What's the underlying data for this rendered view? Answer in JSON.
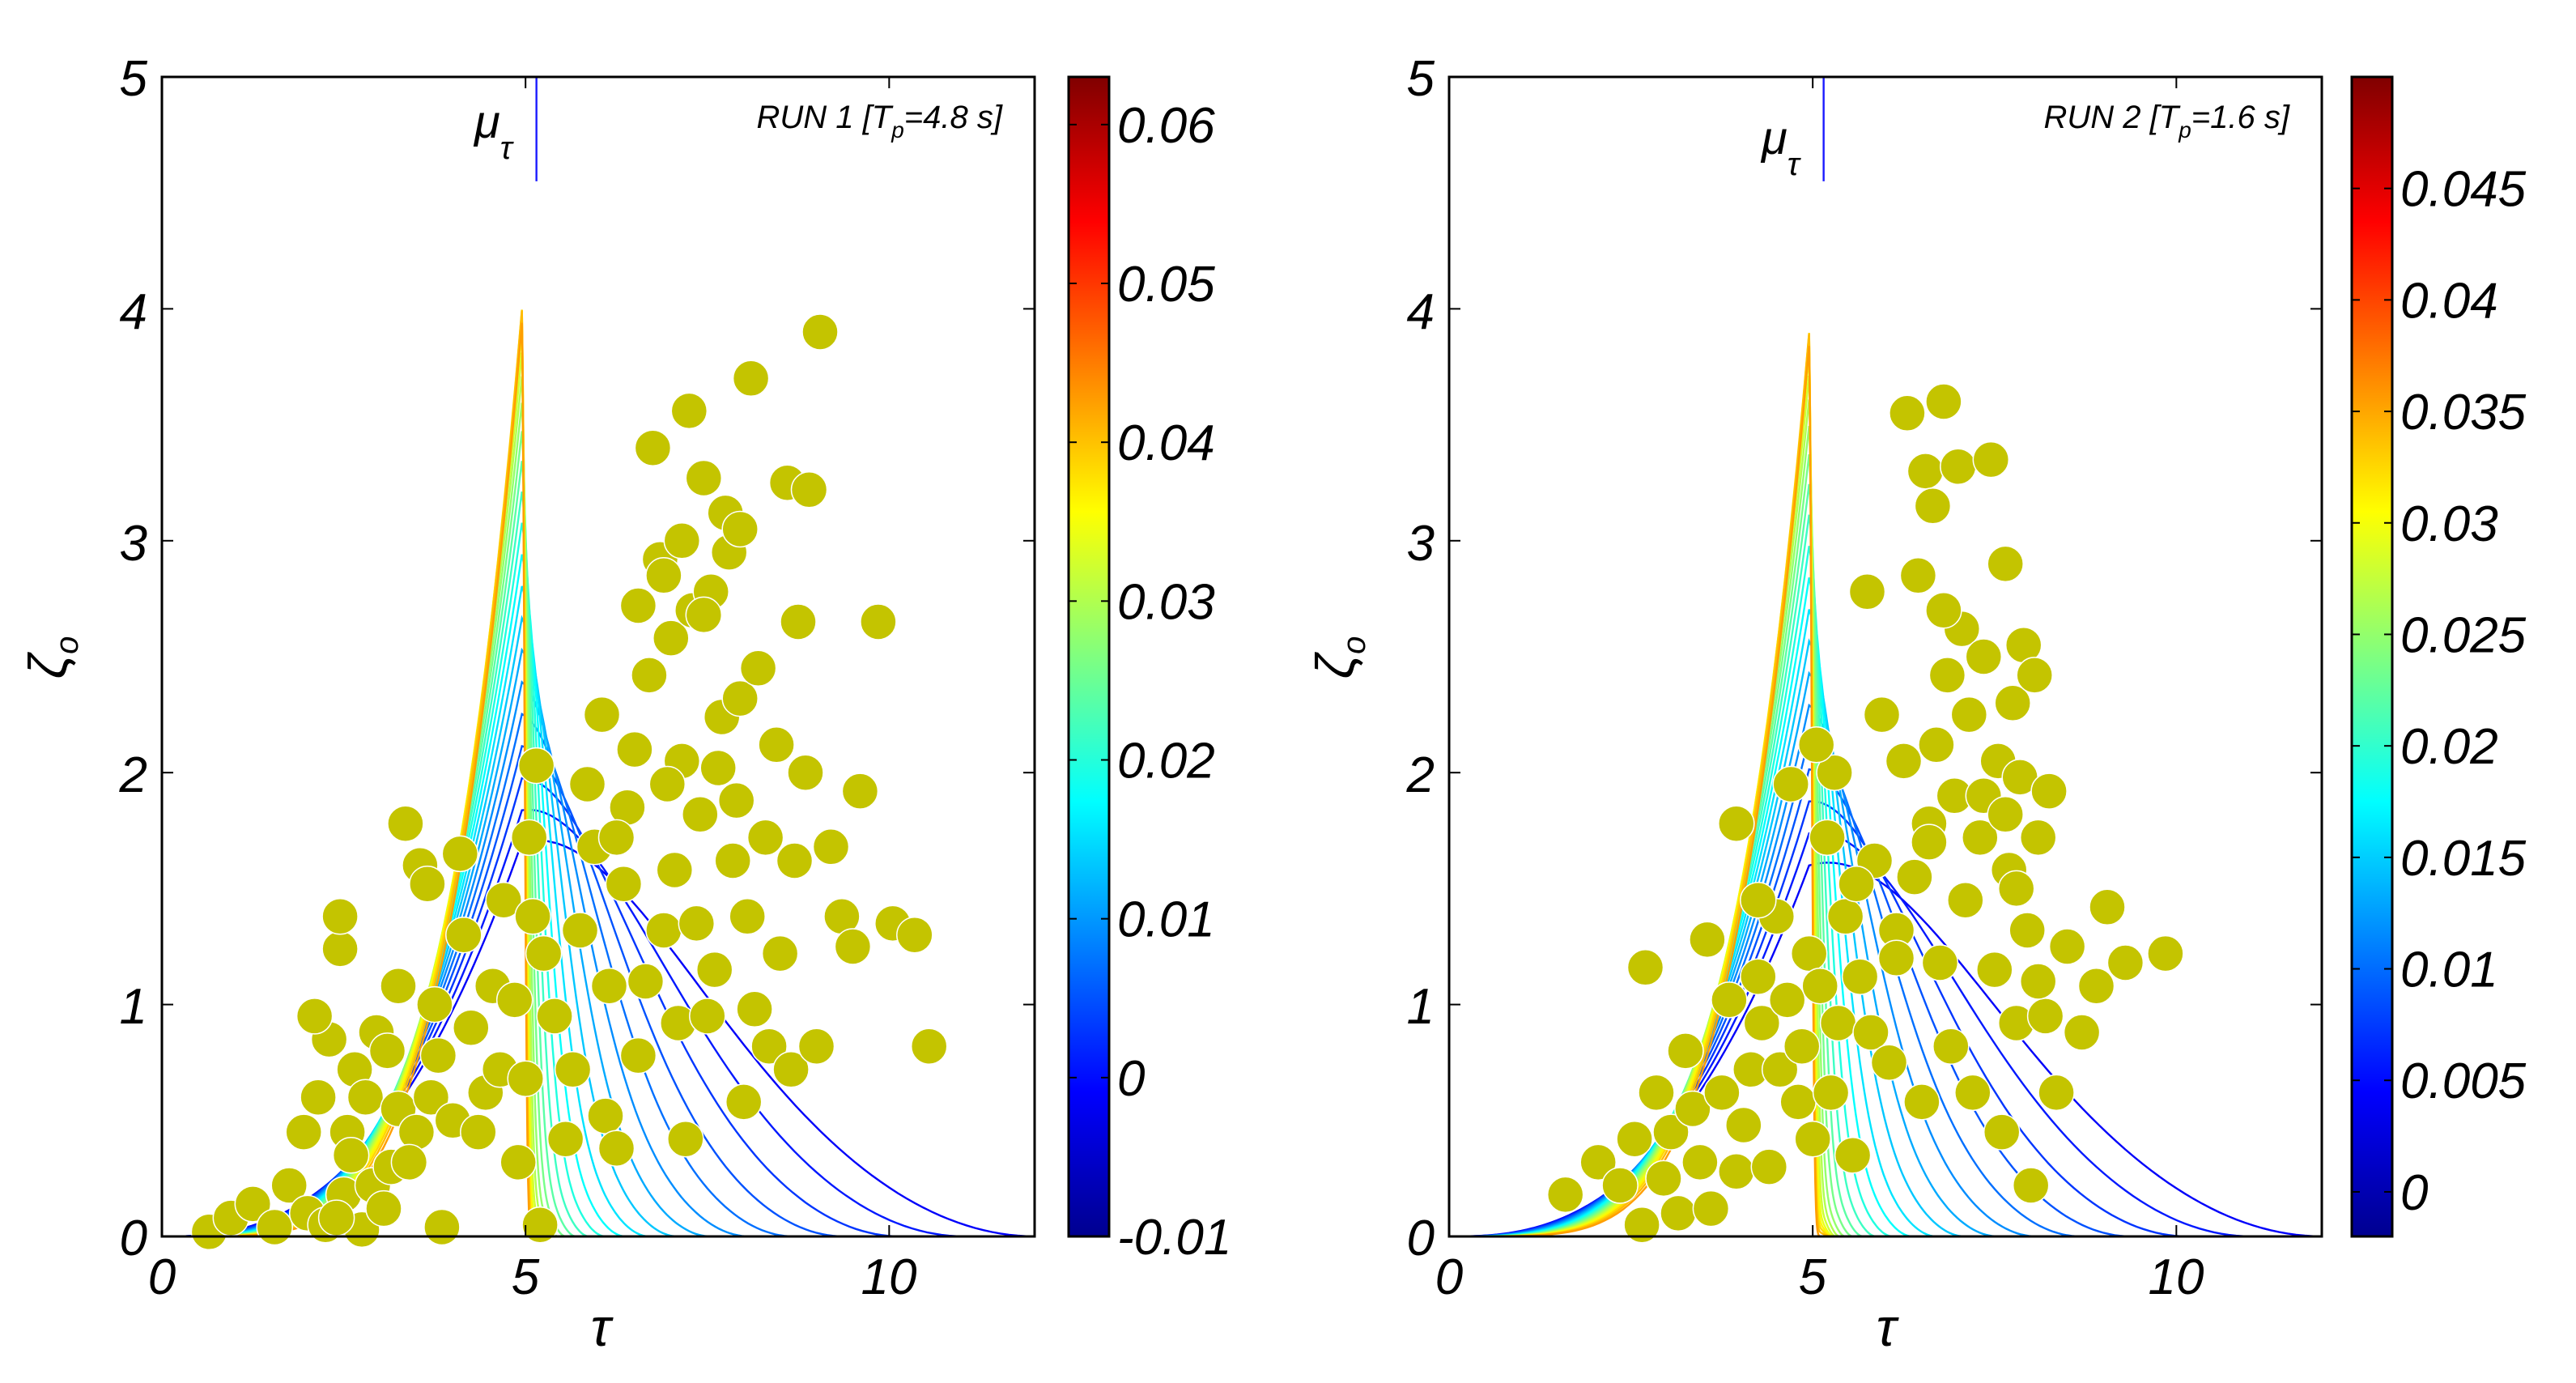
{
  "figure_title": "Wave-height vs period joint distributions",
  "chart_data": [
    {
      "type": "scatter",
      "title": "RUN 1 [Tp=4.8 s]",
      "run_label": "RUN 1",
      "period_param": "T",
      "period_sub": "p",
      "period_value": "=4.8 s]",
      "xlabel": "τ",
      "ylabel": "ζ",
      "ylabel_sub": "o",
      "curve_label": "μ",
      "curve_sub": "τ",
      "xlim": [
        0,
        12
      ],
      "ylim": [
        0,
        5
      ],
      "xticks": [
        0,
        5,
        10
      ],
      "xtick_labels": [
        "0",
        "5",
        "10"
      ],
      "yticks": [
        0,
        1,
        2,
        3,
        4,
        5
      ],
      "ytick_labels": [
        "0",
        "1",
        "2",
        "3",
        "4",
        "5"
      ],
      "colorbar": {
        "min": -0.01,
        "max": 0.063,
        "ticks": [
          -0.01,
          0,
          0.01,
          0.02,
          0.03,
          0.04,
          0.05,
          0.06
        ],
        "tick_labels": [
          "-0.01",
          "0",
          "0.01",
          "0.02",
          "0.03",
          "0.04",
          "0.05",
          "0.06"
        ]
      },
      "distribution": {
        "peak_tau": 5.0,
        "peak_zeta": 1.3,
        "ridge_sigma": 0.28,
        "outer_tau": 12.0
      },
      "marker_color": "#c4c400",
      "points": [
        [
          0.65,
          0.02
        ],
        [
          0.95,
          0.08
        ],
        [
          1.25,
          0.14
        ],
        [
          1.55,
          0.04
        ],
        [
          1.75,
          0.22
        ],
        [
          2.0,
          0.1
        ],
        [
          2.25,
          0.05
        ],
        [
          2.5,
          0.18
        ],
        [
          2.75,
          0.03
        ],
        [
          2.9,
          0.22
        ],
        [
          1.95,
          0.45
        ],
        [
          2.15,
          0.6
        ],
        [
          2.3,
          0.85
        ],
        [
          2.1,
          0.95
        ],
        [
          2.45,
          1.24
        ],
        [
          2.45,
          1.38
        ],
        [
          2.55,
          0.45
        ],
        [
          2.65,
          0.72
        ],
        [
          2.8,
          0.6
        ],
        [
          2.95,
          0.88
        ],
        [
          2.6,
          0.35
        ],
        [
          2.4,
          0.08
        ],
        [
          3.05,
          0.12
        ],
        [
          3.15,
          0.3
        ],
        [
          3.25,
          0.55
        ],
        [
          3.1,
          0.8
        ],
        [
          3.25,
          1.08
        ],
        [
          3.35,
          1.78
        ],
        [
          3.55,
          1.6
        ],
        [
          3.65,
          1.52
        ],
        [
          3.5,
          0.45
        ],
        [
          3.4,
          0.32
        ],
        [
          3.7,
          0.6
        ],
        [
          3.8,
          0.78
        ],
        [
          3.85,
          0.04
        ],
        [
          3.75,
          1.0
        ],
        [
          4.0,
          0.5
        ],
        [
          4.1,
          1.65
        ],
        [
          4.15,
          1.3
        ],
        [
          4.25,
          0.9
        ],
        [
          4.35,
          0.45
        ],
        [
          4.45,
          0.62
        ],
        [
          4.55,
          1.08
        ],
        [
          4.65,
          0.72
        ],
        [
          4.7,
          1.45
        ],
        [
          4.85,
          1.02
        ],
        [
          4.9,
          0.32
        ],
        [
          5.0,
          0.68
        ],
        [
          5.05,
          1.72
        ],
        [
          5.1,
          1.38
        ],
        [
          5.15,
          2.03
        ],
        [
          5.2,
          0.05
        ],
        [
          5.25,
          1.22
        ],
        [
          5.4,
          0.95
        ],
        [
          5.55,
          0.42
        ],
        [
          5.65,
          0.72
        ],
        [
          5.75,
          1.32
        ],
        [
          5.85,
          1.95
        ],
        [
          5.95,
          1.68
        ],
        [
          6.05,
          2.25
        ],
        [
          6.1,
          0.52
        ],
        [
          6.15,
          1.08
        ],
        [
          6.25,
          0.38
        ],
        [
          6.35,
          1.52
        ],
        [
          6.4,
          1.85
        ],
        [
          6.5,
          2.1
        ],
        [
          6.55,
          0.78
        ],
        [
          6.65,
          1.1
        ],
        [
          6.7,
          2.42
        ],
        [
          6.75,
          3.4
        ],
        [
          6.85,
          2.92
        ],
        [
          6.9,
          1.32
        ],
        [
          7.0,
          2.58
        ],
        [
          7.05,
          1.58
        ],
        [
          7.1,
          0.92
        ],
        [
          7.15,
          2.05
        ],
        [
          7.2,
          0.42
        ],
        [
          7.25,
          3.56
        ],
        [
          7.3,
          2.7
        ],
        [
          7.35,
          1.35
        ],
        [
          7.4,
          1.82
        ],
        [
          7.45,
          3.27
        ],
        [
          7.5,
          0.95
        ],
        [
          7.55,
          2.78
        ],
        [
          7.6,
          1.15
        ],
        [
          7.65,
          2.02
        ],
        [
          7.7,
          2.24
        ],
        [
          7.75,
          3.12
        ],
        [
          7.85,
          1.62
        ],
        [
          7.9,
          1.88
        ],
        [
          7.95,
          2.32
        ],
        [
          8.0,
          0.58
        ],
        [
          8.05,
          1.38
        ],
        [
          8.1,
          3.7
        ],
        [
          8.15,
          0.98
        ],
        [
          8.2,
          2.45
        ],
        [
          8.3,
          1.72
        ],
        [
          8.35,
          0.82
        ],
        [
          8.45,
          2.12
        ],
        [
          8.5,
          1.22
        ],
        [
          8.6,
          3.25
        ],
        [
          8.65,
          0.72
        ],
        [
          8.7,
          1.62
        ],
        [
          8.75,
          2.65
        ],
        [
          8.85,
          2.0
        ],
        [
          8.9,
          3.22
        ],
        [
          9.0,
          0.82
        ],
        [
          9.05,
          3.9
        ],
        [
          9.2,
          1.68
        ],
        [
          9.35,
          1.38
        ],
        [
          9.5,
          1.25
        ],
        [
          9.6,
          1.92
        ],
        [
          9.85,
          2.65
        ],
        [
          10.05,
          1.35
        ],
        [
          10.35,
          1.3
        ],
        [
          10.55,
          0.82
        ],
        [
          6.9,
          2.85
        ],
        [
          7.15,
          3.0
        ],
        [
          6.55,
          2.72
        ],
        [
          7.8,
          2.95
        ],
        [
          7.95,
          3.05
        ],
        [
          6.25,
          1.72
        ],
        [
          7.45,
          2.68
        ],
        [
          6.95,
          1.95
        ]
      ]
    },
    {
      "type": "scatter",
      "title": "RUN 2 [Tp=1.6 s]",
      "run_label": "RUN 2",
      "period_param": "T",
      "period_sub": "p",
      "period_value": "=1.6 s]",
      "xlabel": "τ",
      "ylabel": "ζ",
      "ylabel_sub": "o",
      "curve_label": "μ",
      "curve_sub": "τ",
      "xlim": [
        0,
        12
      ],
      "ylim": [
        0,
        5
      ],
      "xticks": [
        0,
        5,
        10
      ],
      "xtick_labels": [
        "0",
        "5",
        "10"
      ],
      "yticks": [
        0,
        1,
        2,
        3,
        4,
        5
      ],
      "ytick_labels": [
        "0",
        "1",
        "2",
        "3",
        "4",
        "5"
      ],
      "colorbar": {
        "min": -0.002,
        "max": 0.05,
        "ticks": [
          0,
          0.005,
          0.01,
          0.015,
          0.02,
          0.025,
          0.03,
          0.035,
          0.04,
          0.045
        ],
        "tick_labels": [
          "0",
          "0.005",
          "0.01",
          "0.015",
          "0.02",
          "0.025",
          "0.03",
          "0.035",
          "0.04",
          "0.045"
        ]
      },
      "distribution": {
        "peak_tau": 5.0,
        "peak_zeta": 1.2,
        "ridge_sigma": 0.26,
        "outer_tau": 12.0
      },
      "marker_color": "#c4c400",
      "points": [
        [
          1.6,
          0.18
        ],
        [
          2.05,
          0.32
        ],
        [
          2.35,
          0.22
        ],
        [
          2.55,
          0.42
        ],
        [
          2.65,
          0.05
        ],
        [
          2.7,
          1.16
        ],
        [
          2.85,
          0.62
        ],
        [
          2.95,
          0.25
        ],
        [
          3.05,
          0.45
        ],
        [
          3.15,
          0.1
        ],
        [
          3.25,
          0.8
        ],
        [
          3.35,
          0.55
        ],
        [
          3.45,
          0.32
        ],
        [
          3.55,
          1.28
        ],
        [
          3.6,
          0.12
        ],
        [
          3.75,
          0.62
        ],
        [
          3.85,
          1.02
        ],
        [
          3.95,
          0.28
        ],
        [
          3.95,
          1.78
        ],
        [
          4.05,
          0.48
        ],
        [
          4.15,
          0.72
        ],
        [
          4.25,
          1.12
        ],
        [
          4.3,
          0.92
        ],
        [
          4.4,
          0.3
        ],
        [
          4.5,
          1.38
        ],
        [
          4.55,
          0.72
        ],
        [
          4.65,
          1.02
        ],
        [
          4.7,
          1.95
        ],
        [
          4.8,
          0.58
        ],
        [
          4.85,
          0.82
        ],
        [
          4.95,
          1.22
        ],
        [
          5.0,
          0.42
        ],
        [
          5.1,
          1.08
        ],
        [
          5.2,
          1.72
        ],
        [
          5.25,
          0.62
        ],
        [
          5.3,
          2.0
        ],
        [
          5.35,
          0.92
        ],
        [
          5.45,
          1.38
        ],
        [
          5.55,
          0.35
        ],
        [
          5.65,
          1.12
        ],
        [
          5.75,
          2.78
        ],
        [
          5.8,
          0.88
        ],
        [
          5.85,
          1.62
        ],
        [
          5.95,
          2.25
        ],
        [
          6.05,
          0.75
        ],
        [
          6.15,
          1.32
        ],
        [
          6.25,
          2.05
        ],
        [
          6.3,
          3.55
        ],
        [
          6.4,
          1.55
        ],
        [
          6.5,
          0.58
        ],
        [
          6.55,
          3.3
        ],
        [
          6.6,
          1.78
        ],
        [
          6.65,
          3.15
        ],
        [
          6.7,
          2.12
        ],
        [
          6.75,
          1.18
        ],
        [
          6.8,
          3.6
        ],
        [
          6.85,
          2.42
        ],
        [
          6.9,
          0.82
        ],
        [
          6.95,
          1.9
        ],
        [
          7.0,
          3.32
        ],
        [
          7.05,
          2.62
        ],
        [
          7.1,
          1.45
        ],
        [
          7.15,
          2.25
        ],
        [
          7.2,
          0.62
        ],
        [
          7.3,
          1.72
        ],
        [
          7.35,
          2.5
        ],
        [
          7.45,
          3.35
        ],
        [
          7.5,
          1.15
        ],
        [
          7.55,
          2.05
        ],
        [
          7.6,
          0.45
        ],
        [
          7.65,
          2.9
        ],
        [
          7.7,
          1.58
        ],
        [
          7.75,
          2.3
        ],
        [
          7.8,
          0.92
        ],
        [
          7.85,
          1.98
        ],
        [
          7.9,
          2.55
        ],
        [
          7.95,
          1.32
        ],
        [
          8.0,
          0.22
        ],
        [
          8.05,
          2.42
        ],
        [
          8.1,
          1.72
        ],
        [
          8.2,
          0.95
        ],
        [
          8.25,
          1.92
        ],
        [
          8.35,
          0.62
        ],
        [
          8.5,
          1.25
        ],
        [
          8.7,
          0.88
        ],
        [
          8.9,
          1.08
        ],
        [
          9.05,
          1.42
        ],
        [
          9.3,
          1.18
        ],
        [
          9.85,
          1.22
        ],
        [
          6.6,
          1.7
        ],
        [
          6.8,
          2.7
        ],
        [
          7.35,
          1.9
        ],
        [
          5.05,
          2.12
        ],
        [
          6.15,
          1.2
        ],
        [
          7.8,
          1.5
        ],
        [
          8.1,
          1.1
        ],
        [
          5.6,
          1.52
        ],
        [
          4.25,
          1.45
        ],
        [
          6.45,
          2.85
        ],
        [
          7.65,
          1.82
        ]
      ]
    }
  ]
}
